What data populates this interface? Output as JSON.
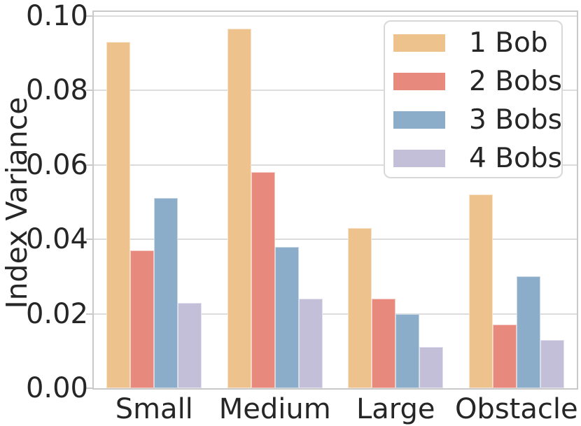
{
  "chart_data": {
    "type": "bar",
    "title": "",
    "xlabel": "",
    "ylabel": "Index Variance",
    "categories": [
      "Small",
      "Medium",
      "Large",
      "Obstacle"
    ],
    "series": [
      {
        "name": "1 Bob",
        "color": "#eec28c",
        "values": [
          0.093,
          0.0965,
          0.043,
          0.052
        ]
      },
      {
        "name": "2 Bobs",
        "color": "#e78a7d",
        "values": [
          0.037,
          0.058,
          0.024,
          0.017
        ]
      },
      {
        "name": "3 Bobs",
        "color": "#8cadc9",
        "values": [
          0.051,
          0.038,
          0.02,
          0.03
        ]
      },
      {
        "name": "4 Bobs",
        "color": "#c3bfd9",
        "values": [
          0.023,
          0.024,
          0.011,
          0.013
        ]
      }
    ],
    "ylim": [
      0,
      0.1
    ],
    "yticks": [
      0,
      0.02,
      0.04,
      0.06,
      0.08,
      0.1
    ],
    "ytick_labels": [
      "0.00",
      "0.02",
      "0.04",
      "0.06",
      "0.08",
      "0.10"
    ],
    "grid": true,
    "legend_position": "upper right"
  },
  "colors": {
    "text": "#262626",
    "grid": "#dcdcdc",
    "spine": "#c9c9c9",
    "legend_border": "#d8d8d8",
    "background": "#ffffff"
  }
}
